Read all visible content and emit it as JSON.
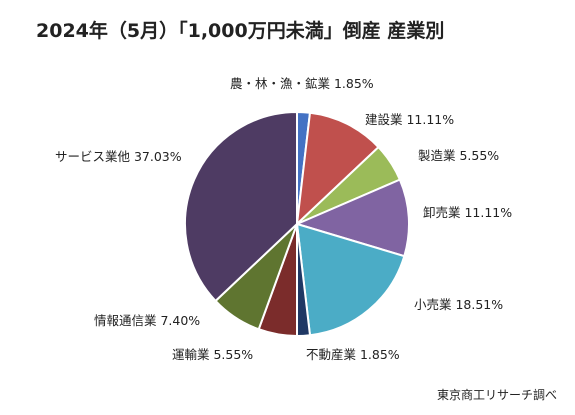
{
  "title": "2024年（5月）「1,000万円未満」倒産  産業別",
  "source": "東京商工リサーチ調べ",
  "chart_data": {
    "type": "pie",
    "title": "2024年（5月）「1,000万円未満」倒産  産業別",
    "start": "12 o'clock",
    "direction": "clockwise",
    "slices": [
      {
        "name": "農・林・漁・鉱業",
        "value": 1.85,
        "label": "農・林・漁・鉱業 1.85%",
        "color": "#4472C4"
      },
      {
        "name": "建設業",
        "value": 11.11,
        "label": "建設業 11.11%",
        "color": "#C0504D"
      },
      {
        "name": "製造業",
        "value": 5.55,
        "label": "製造業 5.55%",
        "color": "#9BBB59"
      },
      {
        "name": "卸売業",
        "value": 11.11,
        "label": "卸売業 11.11%",
        "color": "#8064A2"
      },
      {
        "name": "小売業",
        "value": 18.51,
        "label": "小売業 18.51%",
        "color": "#4BACC6"
      },
      {
        "name": "不動産業",
        "value": 1.85,
        "label": "不動産業 1.85%",
        "color": "#1F3864"
      },
      {
        "name": "運輸業",
        "value": 5.55,
        "label": "運輸業 5.55%",
        "color": "#7B2C2B"
      },
      {
        "name": "情報通信業",
        "value": 7.4,
        "label": "情報通信業 7.40%",
        "color": "#5F7530"
      },
      {
        "name": "サービス業他",
        "value": 37.03,
        "label": "サービス業他 37.03%",
        "color": "#4E3B63"
      }
    ]
  }
}
